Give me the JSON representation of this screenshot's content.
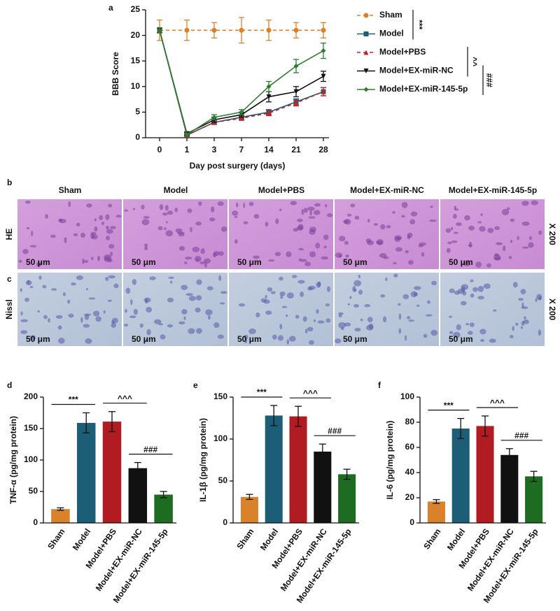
{
  "figure": {
    "panel_labels": [
      "a",
      "b",
      "c",
      "d",
      "e",
      "f"
    ],
    "histology": {
      "groups": [
        "Sham",
        "Model",
        "Model+PBS",
        "Model+EX-miR-NC",
        "Model+EX-miR-145-5p"
      ],
      "stains": [
        "HE",
        "Nissl"
      ],
      "magnification": "X 200",
      "scale_bar": "50 μm"
    }
  },
  "chart_data": [
    {
      "type": "line",
      "ylabel": "BBB Score",
      "xlabel": "Day post surgery (days)",
      "categories": [
        "0",
        "1",
        "3",
        "7",
        "14",
        "21",
        "28"
      ],
      "ylim": [
        0,
        25
      ],
      "yticks": [
        0,
        5,
        10,
        15,
        20,
        25
      ],
      "series": [
        {
          "name": "Sham",
          "color": "#d9822b",
          "dash": true,
          "values": [
            21,
            21,
            21,
            21,
            21,
            21,
            21
          ],
          "errors": [
            2,
            2,
            1.5,
            2.5,
            2,
            1.5,
            1.5
          ]
        },
        {
          "name": "Model",
          "color": "#1b5e75",
          "dash": false,
          "values": [
            21,
            0.5,
            3,
            4,
            5,
            7,
            9
          ],
          "errors": [
            0.5,
            0.3,
            0.4,
            0.4,
            0.5,
            0.6,
            0.8
          ]
        },
        {
          "name": "Model+PBS",
          "color": "#c0232a",
          "dash": true,
          "values": [
            21,
            0.5,
            3,
            3.8,
            4.8,
            6.8,
            9
          ],
          "errors": [
            0.5,
            0.3,
            0.4,
            0.4,
            0.5,
            0.6,
            0.8
          ]
        },
        {
          "name": "Model+EX-miR-NC",
          "color": "#111111",
          "dash": false,
          "values": [
            21,
            0.8,
            3.5,
            4.5,
            8,
            9,
            12
          ],
          "errors": [
            0.5,
            0.3,
            0.5,
            0.5,
            1,
            1,
            1
          ]
        },
        {
          "name": "Model+EX-miR-145-5p",
          "color": "#2e7d32",
          "dash": false,
          "values": [
            21,
            0.6,
            4,
            5,
            10,
            14,
            17
          ],
          "errors": [
            0.5,
            0.3,
            0.5,
            0.5,
            1,
            1.3,
            1.5
          ]
        }
      ],
      "annotations": [
        "***",
        "^^",
        "###"
      ]
    },
    {
      "type": "bar",
      "ylabel": "TNF-α (pg/mg protein)",
      "categories": [
        "Sham",
        "Model",
        "Model+PBS",
        "Model+EX-miR-NC",
        "Model+EX-miR-145-5p"
      ],
      "colors": [
        "#d9822b",
        "#1b5e75",
        "#b01c22",
        "#111111",
        "#1e6b22"
      ],
      "values": [
        22,
        159,
        161,
        87,
        45
      ],
      "errors": [
        2,
        16,
        16,
        9,
        5
      ],
      "ylim": [
        0,
        200
      ],
      "yticks": [
        0,
        50,
        100,
        150,
        200
      ],
      "annotations": [
        "***",
        "^^^",
        "###"
      ]
    },
    {
      "type": "bar",
      "ylabel": "IL-1β (pg/mg protein)",
      "categories": [
        "Sham",
        "Model",
        "Model+PBS",
        "Model+EX-miR-NC",
        "Model+EX-miR-145-5p"
      ],
      "colors": [
        "#d9822b",
        "#1b5e75",
        "#b01c22",
        "#111111",
        "#1e6b22"
      ],
      "values": [
        31,
        128,
        127,
        85,
        58
      ],
      "errors": [
        3,
        12,
        12,
        9,
        6
      ],
      "ylim": [
        0,
        150
      ],
      "yticks": [
        0,
        50,
        100,
        150
      ],
      "annotations": [
        "***",
        "^^^",
        "###"
      ]
    },
    {
      "type": "bar",
      "ylabel": "IL-6 (pg/mg protein)",
      "categories": [
        "Sham",
        "Model",
        "Model+PBS",
        "Model+EX-miR-NC",
        "Model+EX-miR-145-5p"
      ],
      "colors": [
        "#d9822b",
        "#1b5e75",
        "#b01c22",
        "#111111",
        "#1e6b22"
      ],
      "values": [
        17,
        75,
        77,
        54,
        37
      ],
      "errors": [
        1.5,
        8,
        8,
        5,
        4
      ],
      "ylim": [
        0,
        100
      ],
      "yticks": [
        0,
        20,
        40,
        60,
        80,
        100
      ],
      "annotations": [
        "***",
        "^^^",
        "###"
      ]
    }
  ]
}
